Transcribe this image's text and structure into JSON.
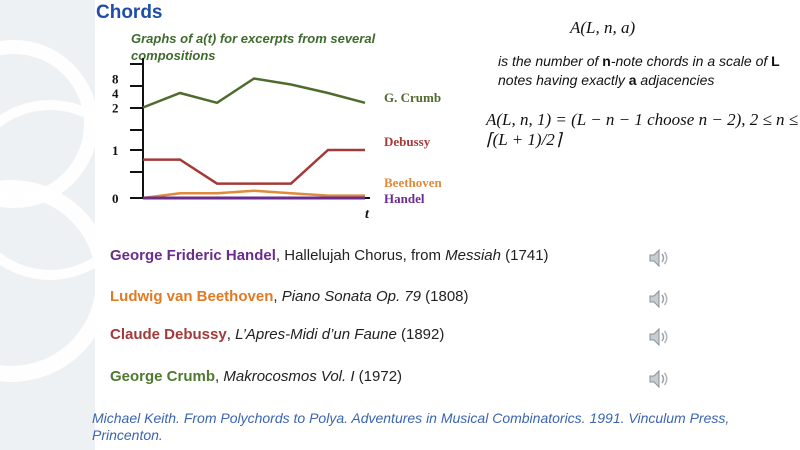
{
  "slide": {
    "title": "Chords"
  },
  "graph": {
    "title": "Graphs of a(t) for excerpts from several compositions"
  },
  "formulas": {
    "top": "A(L, n, a)",
    "definition_parts": [
      "is the number of ",
      "n",
      "-note chords in a scale of ",
      "L",
      " notes having exactly ",
      "a",
      " adjacencies"
    ],
    "main": "A(L, n, 1) = (L − n − 1 choose n − 2), 2 ≤ n ≤ ⌈(L + 1)/2⌉"
  },
  "compositions": [
    {
      "composer": "George Frideric Handel",
      "separator": ",  ",
      "work": "Hallelujah Chorus, from ",
      "work_italic": "Messiah",
      "year": " (1741)",
      "color": "#6a2c8e",
      "icon": "speaker-icon"
    },
    {
      "composer": "Ludwig van Beethoven",
      "separator": ", ",
      "work": "",
      "work_italic": "Piano Sonata Op. 79",
      "year": " (1808)",
      "color": "#e07b24",
      "icon": "speaker-icon"
    },
    {
      "composer": "Claude Debussy",
      "separator": ",  ",
      "work": "",
      "work_italic": "L’Apres-Midi d’un Faune",
      "year": " (1892)",
      "color": "#a33a3a",
      "icon": "speaker-icon"
    },
    {
      "composer": "George Crumb",
      "separator": ",  ",
      "work": "",
      "work_italic": "Makrocosmos Vol. I",
      "year": " (1972)",
      "color": "#4f7a2f",
      "icon": "speaker-icon"
    }
  ],
  "citation": "Michael Keith. From Polychords to Polya. Adventures in Musical Combinatorics. 1991. Vinculum Press, Princenton.",
  "chart_data": {
    "type": "line",
    "title": "Graphs of a(t) for excerpts from several compositions",
    "xlabel": "t",
    "ylabel": "",
    "y_tick_labels": [
      "0",
      "1",
      "2",
      "4",
      "8"
    ],
    "y_scale": "log2 (with 0 at baseline)",
    "x": [
      0,
      1,
      2,
      3,
      4,
      5,
      6
    ],
    "series": [
      {
        "name": "G. Crumb",
        "color": "#4f6b2e",
        "values": [
          2,
          4,
          2.5,
          8,
          6,
          4,
          2.5
        ]
      },
      {
        "name": "Debussy",
        "color": "#a33a3a",
        "values": [
          0.8,
          0.8,
          0.3,
          0.3,
          0.3,
          1,
          1
        ]
      },
      {
        "name": "Beethoven",
        "color": "#e08a3a",
        "values": [
          0,
          0.1,
          0.1,
          0.15,
          0.1,
          0.05,
          0.05
        ]
      },
      {
        "name": "Handel",
        "color": "#6a2c8e",
        "values": [
          0,
          0,
          0,
          0,
          0,
          0,
          0
        ]
      }
    ]
  }
}
